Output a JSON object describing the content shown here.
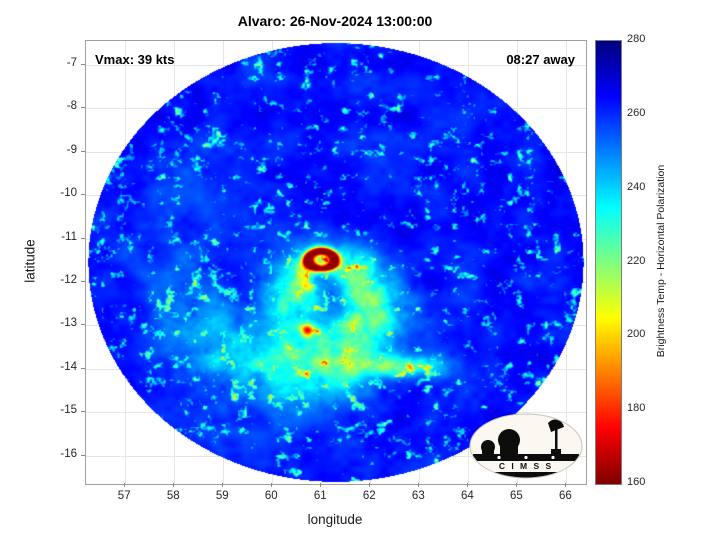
{
  "chart_data": {
    "type": "heatmap",
    "title": "Alvaro: 26-Nov-2024 13:00:00",
    "xlabel": "longitude",
    "ylabel": "latitude",
    "xlim": [
      56.2,
      66.4
    ],
    "ylim": [
      -16.65,
      -6.45
    ],
    "xticks": [
      57,
      58,
      59,
      60,
      61,
      62,
      63,
      64,
      65,
      66
    ],
    "yticks": [
      -7,
      -8,
      -9,
      -10,
      -11,
      -12,
      -13,
      -14,
      -15,
      -16
    ],
    "grid": true,
    "annotations": {
      "vmax": "Vmax: 39 kts",
      "eta": "08:27 away"
    },
    "colorbar": {
      "label": "Brightness Temp - Horizontal Polarization",
      "min": 160,
      "max": 280,
      "ticks": [
        160,
        180,
        200,
        220,
        240,
        260,
        280
      ],
      "colormap": "jet-reversed",
      "position": "right"
    },
    "swath": {
      "center_lon": 61.3,
      "center_lat": -11.55,
      "radius_deg": 5.05
    },
    "storm": {
      "name": "Alvaro",
      "center_lon": 60.85,
      "center_lat": -12.05,
      "eyewall_lon": 61.0,
      "eyewall_lat": -11.5,
      "background_temp_k": 262,
      "min_temp_k": 165
    },
    "logo_text": "C I M S S"
  }
}
